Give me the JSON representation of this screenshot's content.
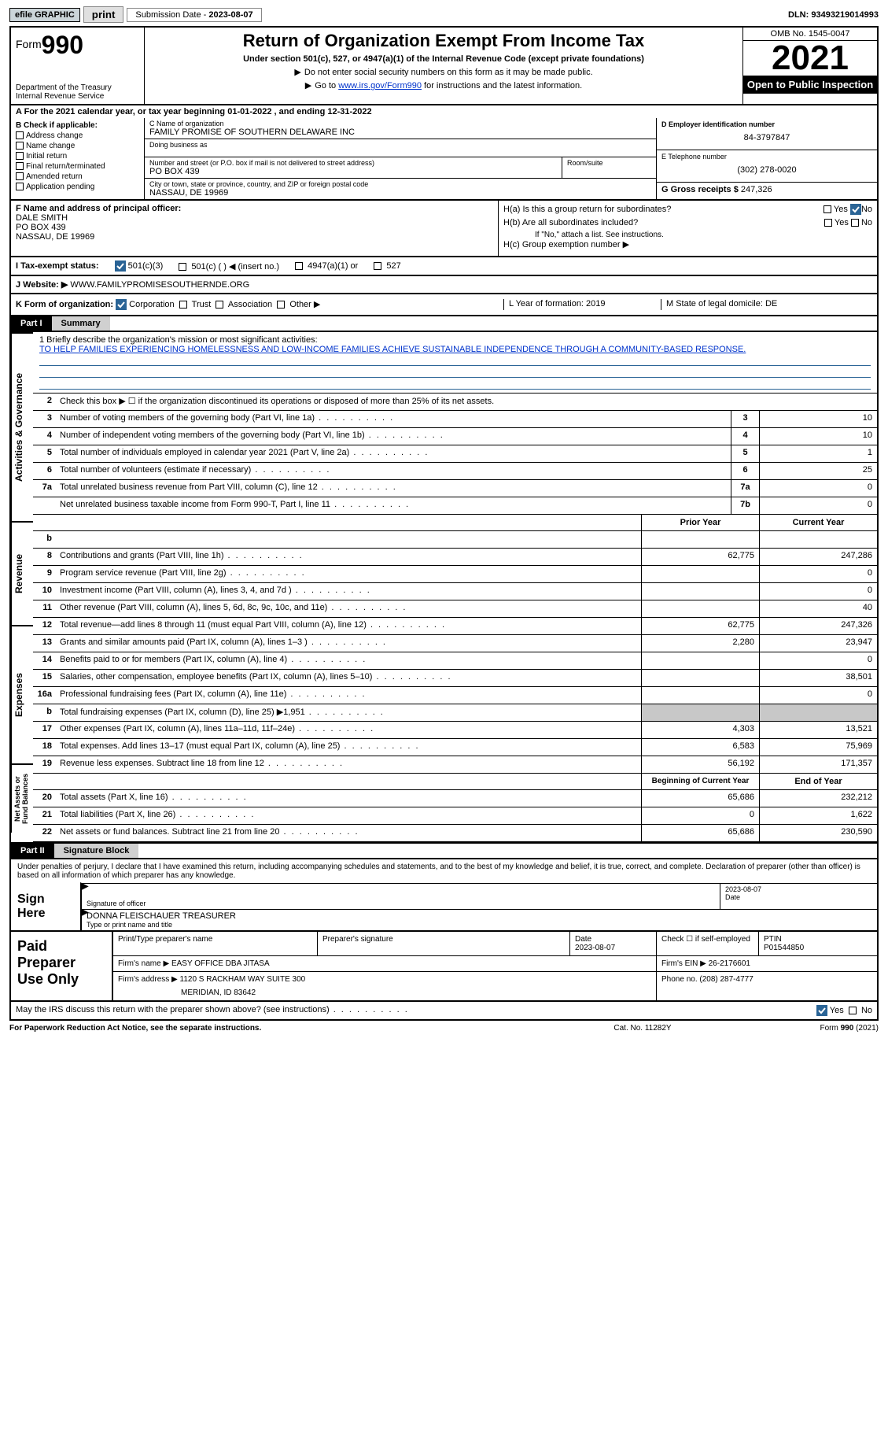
{
  "topbar": {
    "efile": "efile GRAPHIC",
    "print": "print",
    "subdate_label": "Submission Date - ",
    "subdate": "2023-08-07",
    "dln_label": "DLN: ",
    "dln": "93493219014993"
  },
  "header": {
    "form_word": "Form",
    "form_num": "990",
    "title": "Return of Organization Exempt From Income Tax",
    "sub": "Under section 501(c), 527, or 4947(a)(1) of the Internal Revenue Code (except private foundations)",
    "note1": "Do not enter social security numbers on this form as it may be made public.",
    "note2_pre": "Go to ",
    "note2_link": "www.irs.gov/Form990",
    "note2_post": " for instructions and the latest information.",
    "dept": "Department of the Treasury",
    "irs": "Internal Revenue Service",
    "omb": "OMB No. 1545-0047",
    "year": "2021",
    "inspect": "Open to Public Inspection"
  },
  "lineA": {
    "pre": "A For the 2021 calendar year, or tax year beginning ",
    "begin": "01-01-2022",
    "mid": "   , and ending ",
    "end": "12-31-2022"
  },
  "colB": {
    "title": "B Check if applicable:",
    "items": [
      "Address change",
      "Name change",
      "Initial return",
      "Final return/terminated",
      "Amended return",
      "Application pending"
    ]
  },
  "colC": {
    "name_label": "C Name of organization",
    "name": "FAMILY PROMISE OF SOUTHERN DELAWARE INC",
    "dba_label": "Doing business as",
    "addr_label": "Number and street (or P.O. box if mail is not delivered to street address)",
    "room_label": "Room/suite",
    "addr": "PO BOX 439",
    "city_label": "City or town, state or province, country, and ZIP or foreign postal code",
    "city": "NASSAU, DE  19969"
  },
  "colD": {
    "label": "D Employer identification number",
    "val": "84-3797847"
  },
  "colE": {
    "label": "E Telephone number",
    "val": "(302) 278-0020"
  },
  "colG": {
    "label": "G Gross receipts $ ",
    "val": "247,326"
  },
  "colF": {
    "label": "F  Name and address of principal officer:",
    "name": "DALE SMITH",
    "addr": "PO BOX 439",
    "city": "NASSAU, DE  19969"
  },
  "colH": {
    "ha": "H(a)  Is this a group return for subordinates?",
    "hb": "H(b)  Are all subordinates included?",
    "hb_note": "If \"No,\" attach a list. See instructions.",
    "hc": "H(c)  Group exemption number ▶",
    "yes": "Yes",
    "no": "No"
  },
  "status": {
    "label": "I    Tax-exempt status:",
    "opts": [
      "501(c)(3)",
      "501(c) (  ) ◀ (insert no.)",
      "4947(a)(1) or",
      "527"
    ]
  },
  "website": {
    "label": "J   Website: ▶",
    "val": "  WWW.FAMILYPROMISESOUTHERNDE.ORG"
  },
  "kform": {
    "label": "K Form of organization:",
    "opts": [
      "Corporation",
      "Trust",
      "Association",
      "Other ▶"
    ],
    "L": "L Year of formation: 2019",
    "M": "M State of legal domicile: DE"
  },
  "part1": {
    "tag": "Part I",
    "title": "Summary"
  },
  "mission": {
    "label": "1   Briefly describe the organization's mission or most significant activities:",
    "text": "TO HELP FAMILIES EXPERIENCING HOMELESSNESS AND LOW-INCOME FAMILIES ACHIEVE SUSTAINABLE INDEPENDENCE THROUGH A COMMUNITY-BASED RESPONSE."
  },
  "gov_rows": [
    {
      "n": "2",
      "t": "Check this box ▶ ☐  if the organization discontinued its operations or disposed of more than 25% of its net assets.",
      "box": "",
      "v1": "",
      "v2": ""
    },
    {
      "n": "3",
      "t": "Number of voting members of the governing body (Part VI, line 1a)",
      "box": "3",
      "v1": "",
      "v2": "10"
    },
    {
      "n": "4",
      "t": "Number of independent voting members of the governing body (Part VI, line 1b)",
      "box": "4",
      "v1": "",
      "v2": "10"
    },
    {
      "n": "5",
      "t": "Total number of individuals employed in calendar year 2021 (Part V, line 2a)",
      "box": "5",
      "v1": "",
      "v2": "1"
    },
    {
      "n": "6",
      "t": "Total number of volunteers (estimate if necessary)",
      "box": "6",
      "v1": "",
      "v2": "25"
    },
    {
      "n": "7a",
      "t": "Total unrelated business revenue from Part VIII, column (C), line 12",
      "box": "7a",
      "v1": "",
      "v2": "0"
    },
    {
      "n": "",
      "t": "Net unrelated business taxable income from Form 990-T, Part I, line 11",
      "box": "7b",
      "v1": "",
      "v2": "0"
    }
  ],
  "rev_head": {
    "prior": "Prior Year",
    "curr": "Current Year"
  },
  "rev_rows": [
    {
      "n": "b",
      "t": "",
      "v1": "",
      "v2": "",
      "noborder": true
    },
    {
      "n": "8",
      "t": "Contributions and grants (Part VIII, line 1h)",
      "v1": "62,775",
      "v2": "247,286"
    },
    {
      "n": "9",
      "t": "Program service revenue (Part VIII, line 2g)",
      "v1": "",
      "v2": "0"
    },
    {
      "n": "10",
      "t": "Investment income (Part VIII, column (A), lines 3, 4, and 7d )",
      "v1": "",
      "v2": "0"
    },
    {
      "n": "11",
      "t": "Other revenue (Part VIII, column (A), lines 5, 6d, 8c, 9c, 10c, and 11e)",
      "v1": "",
      "v2": "40"
    },
    {
      "n": "12",
      "t": "Total revenue—add lines 8 through 11 (must equal Part VIII, column (A), line 12)",
      "v1": "62,775",
      "v2": "247,326"
    }
  ],
  "exp_rows": [
    {
      "n": "13",
      "t": "Grants and similar amounts paid (Part IX, column (A), lines 1–3 )",
      "v1": "2,280",
      "v2": "23,947"
    },
    {
      "n": "14",
      "t": "Benefits paid to or for members (Part IX, column (A), line 4)",
      "v1": "",
      "v2": "0"
    },
    {
      "n": "15",
      "t": "Salaries, other compensation, employee benefits (Part IX, column (A), lines 5–10)",
      "v1": "",
      "v2": "38,501"
    },
    {
      "n": "16a",
      "t": "Professional fundraising fees (Part IX, column (A), line 11e)",
      "v1": "",
      "v2": "0"
    },
    {
      "n": "b",
      "t": "Total fundraising expenses (Part IX, column (D), line 25) ▶1,951",
      "v1": "shade",
      "v2": "shade"
    },
    {
      "n": "17",
      "t": "Other expenses (Part IX, column (A), lines 11a–11d, 11f–24e)",
      "v1": "4,303",
      "v2": "13,521"
    },
    {
      "n": "18",
      "t": "Total expenses. Add lines 13–17 (must equal Part IX, column (A), line 25)",
      "v1": "6,583",
      "v2": "75,969"
    },
    {
      "n": "19",
      "t": "Revenue less expenses. Subtract line 18 from line 12",
      "v1": "56,192",
      "v2": "171,357"
    }
  ],
  "net_head": {
    "prior": "Beginning of Current Year",
    "curr": "End of Year"
  },
  "net_rows": [
    {
      "n": "20",
      "t": "Total assets (Part X, line 16)",
      "v1": "65,686",
      "v2": "232,212"
    },
    {
      "n": "21",
      "t": "Total liabilities (Part X, line 26)",
      "v1": "0",
      "v2": "1,622"
    },
    {
      "n": "22",
      "t": "Net assets or fund balances. Subtract line 21 from line 20",
      "v1": "65,686",
      "v2": "230,590"
    }
  ],
  "side_labels": {
    "gov": "Activities & Governance",
    "rev": "Revenue",
    "exp": "Expenses",
    "net": "Net Assets or Fund Balances"
  },
  "part2": {
    "tag": "Part II",
    "title": "Signature Block"
  },
  "sig": {
    "intro": "Under penalties of perjury, I declare that I have examined this return, including accompanying schedules and statements, and to the best of my knowledge and belief, it is true, correct, and complete. Declaration of preparer (other than officer) is based on all information of which preparer has any knowledge.",
    "sign_here": "Sign Here",
    "sig_label": "Signature of officer",
    "date_label": "Date",
    "date_val": "2023-08-07",
    "name_val": "DONNA FLEISCHAUER  TREASURER",
    "name_label": "Type or print name and title"
  },
  "paid": {
    "title": "Paid Preparer Use Only",
    "h1": "Print/Type preparer's name",
    "h2": "Preparer's signature",
    "h3": "Date",
    "h3v": "2023-08-07",
    "h4": "Check ☐ if self-employed",
    "h5": "PTIN",
    "h5v": "P01544850",
    "firm_label": "Firm's name    ▶ ",
    "firm": "EASY OFFICE DBA JITASA",
    "ein_label": "Firm's EIN ▶ ",
    "ein": "26-2176601",
    "addr_label": "Firm's address ▶ ",
    "addr1": "1120 S RACKHAM WAY SUITE 300",
    "addr2": "MERIDIAN, ID  83642",
    "phone_label": "Phone no. ",
    "phone": "(208) 287-4777"
  },
  "discuss": {
    "text": "May the IRS discuss this return with the preparer shown above? (see instructions)",
    "yes": "Yes",
    "no": "No"
  },
  "footer": {
    "f1": "For Paperwork Reduction Act Notice, see the separate instructions.",
    "f2": "Cat. No. 11282Y",
    "f3": "Form 990 (2021)"
  }
}
